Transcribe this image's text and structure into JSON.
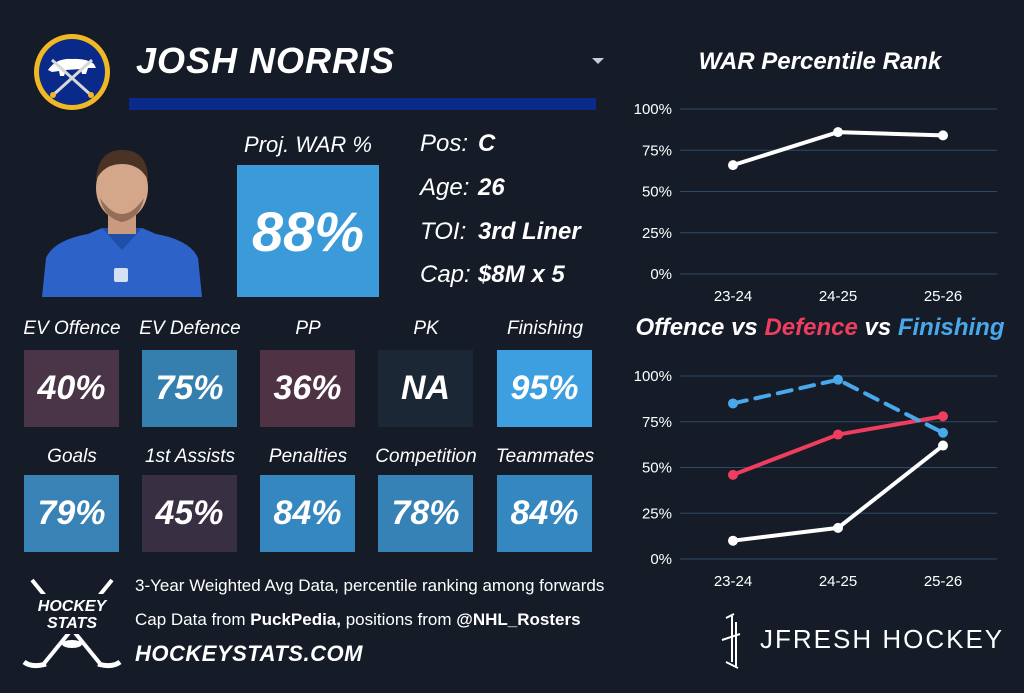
{
  "player": {
    "name": "JOSH NORRIS"
  },
  "proj_war": {
    "label": "Proj. WAR %",
    "value": "88%",
    "color": "#3b9ad8"
  },
  "info": [
    {
      "key": "Pos:",
      "value": "C"
    },
    {
      "key": "Age:",
      "value": "26"
    },
    {
      "key": "TOI:",
      "value": "3rd Liner"
    },
    {
      "key": "Cap:",
      "value": "$8M x 5"
    }
  ],
  "tiles_row1": [
    {
      "label": "EV Offence",
      "value": "40%",
      "color": "#4a3447"
    },
    {
      "label": "EV Defence",
      "value": "75%",
      "color": "#347fae"
    },
    {
      "label": "PP",
      "value": "36%",
      "color": "#4f3244"
    },
    {
      "label": "PK",
      "value": "NA",
      "color": "#1c2736"
    },
    {
      "label": "Finishing",
      "value": "95%",
      "color": "#3d9fe0"
    }
  ],
  "tiles_row2": [
    {
      "label": "Goals",
      "value": "79%",
      "color": "#3882b6"
    },
    {
      "label": "1st Assists",
      "value": "45%",
      "color": "#392f43"
    },
    {
      "label": "Penalties",
      "value": "84%",
      "color": "#3587c0"
    },
    {
      "label": "Competition",
      "value": "78%",
      "color": "#3681b5"
    },
    {
      "label": "Teammates",
      "value": "84%",
      "color": "#3587c0"
    }
  ],
  "footer": {
    "line1": "3-Year Weighted Avg Data, percentile ranking among forwards",
    "line2_pre": "Cap Data from ",
    "line2_bold1": "PuckPedia,",
    "line2_mid": " positions from ",
    "line2_bold2": "@NHL_Rosters",
    "site": "HOCKEYSTATS.COM",
    "logo_text_1": "HOCKEY",
    "logo_text_2": "STATS",
    "brand": "JFRESH HOCKEY"
  },
  "chart_data": [
    {
      "type": "line",
      "title": "WAR Percentile Rank",
      "categories": [
        "23-24",
        "24-25",
        "25-26"
      ],
      "yticks": [
        "100%",
        "75%",
        "50%",
        "25%",
        "0%"
      ],
      "ylim": [
        0,
        100
      ],
      "series": [
        {
          "values": [
            66,
            86,
            84
          ],
          "color": "#ffffff",
          "dash": false
        }
      ]
    },
    {
      "type": "line",
      "title_parts": [
        {
          "text": "Offence",
          "color": "#ffffff"
        },
        {
          "text": " vs ",
          "color": "#ffffff"
        },
        {
          "text": "Defence",
          "color": "#ef3d5f"
        },
        {
          "text": " vs ",
          "color": "#ffffff"
        },
        {
          "text": "Finishing",
          "color": "#49a8ea"
        }
      ],
      "categories": [
        "23-24",
        "24-25",
        "25-26"
      ],
      "yticks": [
        "100%",
        "75%",
        "50%",
        "25%",
        "0%"
      ],
      "ylim": [
        0,
        100
      ],
      "series": [
        {
          "name": "Offence",
          "values": [
            10,
            17,
            62
          ],
          "color": "#ffffff",
          "dash": false
        },
        {
          "name": "Defence",
          "values": [
            46,
            68,
            78
          ],
          "color": "#ef3d5f",
          "dash": false
        },
        {
          "name": "Finishing",
          "values": [
            85,
            98,
            69
          ],
          "color": "#49a8ea",
          "dash": true
        }
      ]
    }
  ]
}
